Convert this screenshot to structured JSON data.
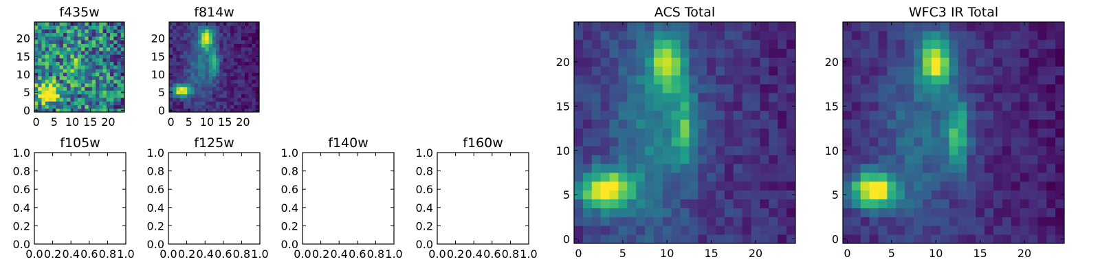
{
  "chart_data": [
    {
      "name": "f435w",
      "type": "heatmap",
      "title": "f435w",
      "xticks": [
        "0",
        "5",
        "10",
        "15",
        "20"
      ],
      "yticks": [
        "0",
        "5",
        "10",
        "15",
        "20"
      ],
      "xlim": [
        -0.5,
        24.5
      ],
      "ylim": [
        -0.5,
        24.5
      ],
      "colormap": "viridis",
      "blobs": [
        {
          "x": 3,
          "y": 5,
          "sx": 2.2,
          "sy": 1.8,
          "a": 0.75
        },
        {
          "x": 11,
          "y": 12,
          "sx": 2.0,
          "sy": 2.5,
          "a": 0.25
        }
      ],
      "base": 0.45,
      "noise": 0.35
    },
    {
      "name": "f814w",
      "type": "heatmap",
      "title": "f814w",
      "xticks": [
        "0",
        "5",
        "10",
        "15",
        "20"
      ],
      "yticks": [
        "0",
        "5",
        "10",
        "15",
        "20"
      ],
      "xlim": [
        -0.5,
        24.5
      ],
      "ylim": [
        -0.5,
        24.5
      ],
      "colormap": "viridis",
      "blobs": [
        {
          "x": 3,
          "y": 5.5,
          "sx": 1.7,
          "sy": 1.2,
          "a": 0.95
        },
        {
          "x": 10,
          "y": 20,
          "sx": 1.3,
          "sy": 2.2,
          "a": 0.75
        },
        {
          "x": 12,
          "y": 13,
          "sx": 1.0,
          "sy": 2.8,
          "a": 0.45
        },
        {
          "x": 8,
          "y": 13,
          "sx": 2.5,
          "sy": 7,
          "a": 0.25
        }
      ],
      "base": 0.12,
      "noise": 0.1
    },
    {
      "name": "f105w",
      "type": "empty",
      "title": "f105w",
      "xticks": [
        "0.0",
        "0.2",
        "0.4",
        "0.6",
        "0.8",
        "1.0"
      ],
      "yticks": [
        "0.0",
        "0.2",
        "0.4",
        "0.6",
        "0.8",
        "1.0"
      ],
      "xlim": [
        0,
        1
      ],
      "ylim": [
        0,
        1
      ]
    },
    {
      "name": "f125w",
      "type": "empty",
      "title": "f125w",
      "xticks": [
        "0.0",
        "0.2",
        "0.4",
        "0.6",
        "0.8",
        "1.0"
      ],
      "yticks": [
        "0.0",
        "0.2",
        "0.4",
        "0.6",
        "0.8",
        "1.0"
      ],
      "xlim": [
        0,
        1
      ],
      "ylim": [
        0,
        1
      ]
    },
    {
      "name": "f140w",
      "type": "empty",
      "title": "f140w",
      "xticks": [
        "0.0",
        "0.2",
        "0.4",
        "0.6",
        "0.8",
        "1.0"
      ],
      "yticks": [
        "0.0",
        "0.2",
        "0.4",
        "0.6",
        "0.8",
        "1.0"
      ],
      "xlim": [
        0,
        1
      ],
      "ylim": [
        0,
        1
      ]
    },
    {
      "name": "f160w",
      "type": "empty",
      "title": "f160w",
      "xticks": [
        "0.0",
        "0.2",
        "0.4",
        "0.6",
        "0.8",
        "1.0"
      ],
      "yticks": [
        "0.0",
        "0.2",
        "0.4",
        "0.6",
        "0.8",
        "1.0"
      ],
      "xlim": [
        0,
        1
      ],
      "ylim": [
        0,
        1
      ]
    },
    {
      "name": "acs-total",
      "type": "heatmap",
      "title": "ACS Total",
      "xticks": [
        "0",
        "5",
        "10",
        "15",
        "20"
      ],
      "yticks": [
        "0",
        "5",
        "10",
        "15",
        "20"
      ],
      "xlim": [
        -0.5,
        24.5
      ],
      "ylim": [
        -0.5,
        24.5
      ],
      "colormap": "viridis",
      "blobs": [
        {
          "x": 3,
          "y": 5.5,
          "sx": 2.0,
          "sy": 1.5,
          "a": 0.9
        },
        {
          "x": 10,
          "y": 20,
          "sx": 1.3,
          "sy": 2.2,
          "a": 0.7
        },
        {
          "x": 12,
          "y": 12.5,
          "sx": 1.0,
          "sy": 3.0,
          "a": 0.45
        },
        {
          "x": 8,
          "y": 12,
          "sx": 3.0,
          "sy": 8,
          "a": 0.25
        }
      ],
      "base": 0.17,
      "noise": 0.09
    },
    {
      "name": "wfc3-ir-total",
      "type": "heatmap",
      "title": "WFC3 IR Total",
      "xticks": [
        "0",
        "5",
        "10",
        "15",
        "20"
      ],
      "yticks": [
        "0",
        "5",
        "10",
        "15",
        "20"
      ],
      "xlim": [
        -0.5,
        24.5
      ],
      "ylim": [
        -0.5,
        24.5
      ],
      "colormap": "viridis",
      "blobs": [
        {
          "x": 3,
          "y": 5.5,
          "sx": 1.8,
          "sy": 1.4,
          "a": 0.95
        },
        {
          "x": 10,
          "y": 20,
          "sx": 1.2,
          "sy": 2.0,
          "a": 0.75
        },
        {
          "x": 12.5,
          "y": 12,
          "sx": 0.9,
          "sy": 2.8,
          "a": 0.5
        },
        {
          "x": 8,
          "y": 12,
          "sx": 3.0,
          "sy": 8,
          "a": 0.22
        }
      ],
      "base": 0.13,
      "noise": 0.08
    }
  ]
}
